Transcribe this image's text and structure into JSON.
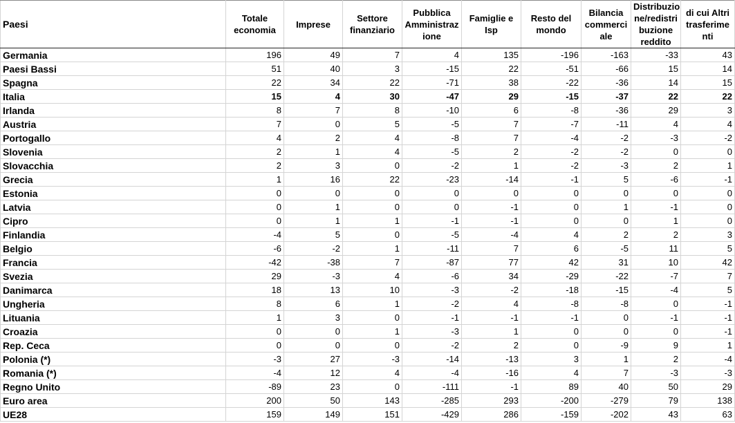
{
  "headers": [
    "Paesi",
    "Totale economia",
    "Imprese",
    "Settore finanziario",
    "Pubblica Amministrazione",
    "Famiglie e Isp",
    "Resto del mondo",
    "Bilancia commerciale",
    "Distribuzione/redistribuzione reddito",
    "di cui Altri trasferimenti"
  ],
  "headers_display": [
    "Paesi",
    "Totale economia",
    "Imprese",
    "Settore finanziario",
    "Pubblica Amministraz ione",
    "Famiglie e Isp",
    "Resto del mondo",
    "Bilancia commerci ale",
    "Distribuzio ne/redistri buzione reddito",
    "di cui Altri trasferime nti"
  ],
  "rows": [
    {
      "country": "Germania",
      "bold": false,
      "values": [
        "196",
        "49",
        "7",
        "4",
        "135",
        "-196",
        "-163",
        "-33",
        "43"
      ]
    },
    {
      "country": "Paesi Bassi",
      "bold": false,
      "values": [
        "51",
        "40",
        "3",
        "-15",
        "22",
        "-51",
        "-66",
        "15",
        "14"
      ]
    },
    {
      "country": "Spagna",
      "bold": false,
      "values": [
        "22",
        "34",
        "22",
        "-71",
        "38",
        "-22",
        "-36",
        "14",
        "15"
      ]
    },
    {
      "country": "Italia",
      "bold": true,
      "values": [
        "15",
        "4",
        "30",
        "-47",
        "29",
        "-15",
        "-37",
        "22",
        "22"
      ]
    },
    {
      "country": "Irlanda",
      "bold": false,
      "values": [
        "8",
        "7",
        "8",
        "-10",
        "6",
        "-8",
        "-36",
        "29",
        "3"
      ]
    },
    {
      "country": "Austria",
      "bold": false,
      "values": [
        "7",
        "0",
        "5",
        "-5",
        "7",
        "-7",
        "-11",
        "4",
        "4"
      ]
    },
    {
      "country": "Portogallo",
      "bold": false,
      "values": [
        "4",
        "2",
        "4",
        "-8",
        "7",
        "-4",
        "-2",
        "-3",
        "-2"
      ]
    },
    {
      "country": "Slovenia",
      "bold": false,
      "values": [
        "2",
        "1",
        "4",
        "-5",
        "2",
        "-2",
        "-2",
        "0",
        "0"
      ]
    },
    {
      "country": "Slovacchia",
      "bold": false,
      "values": [
        "2",
        "3",
        "0",
        "-2",
        "1",
        "-2",
        "-3",
        "2",
        "1"
      ]
    },
    {
      "country": "Grecia",
      "bold": false,
      "values": [
        "1",
        "16",
        "22",
        "-23",
        "-14",
        "-1",
        "5",
        "-6",
        "-1"
      ]
    },
    {
      "country": "Estonia",
      "bold": false,
      "values": [
        "0",
        "0",
        "0",
        "0",
        "0",
        "0",
        "0",
        "0",
        "0"
      ]
    },
    {
      "country": "Latvia",
      "bold": false,
      "values": [
        "0",
        "1",
        "0",
        "0",
        "-1",
        "0",
        "1",
        "-1",
        "0"
      ]
    },
    {
      "country": "Cipro",
      "bold": false,
      "values": [
        "0",
        "1",
        "1",
        "-1",
        "-1",
        "0",
        "0",
        "1",
        "0"
      ]
    },
    {
      "country": "Finlandia",
      "bold": false,
      "values": [
        "-4",
        "5",
        "0",
        "-5",
        "-4",
        "4",
        "2",
        "2",
        "3"
      ]
    },
    {
      "country": "Belgio",
      "bold": false,
      "values": [
        "-6",
        "-2",
        "1",
        "-11",
        "7",
        "6",
        "-5",
        "11",
        "5"
      ]
    },
    {
      "country": "Francia",
      "bold": false,
      "values": [
        "-42",
        "-38",
        "7",
        "-87",
        "77",
        "42",
        "31",
        "10",
        "42"
      ]
    },
    {
      "country": "Svezia",
      "bold": false,
      "values": [
        "29",
        "-3",
        "4",
        "-6",
        "34",
        "-29",
        "-22",
        "-7",
        "7"
      ]
    },
    {
      "country": "Danimarca",
      "bold": false,
      "values": [
        "18",
        "13",
        "10",
        "-3",
        "-2",
        "-18",
        "-15",
        "-4",
        "5"
      ]
    },
    {
      "country": "Ungheria",
      "bold": false,
      "values": [
        "8",
        "6",
        "1",
        "-2",
        "4",
        "-8",
        "-8",
        "0",
        "-1"
      ]
    },
    {
      "country": "Lituania",
      "bold": false,
      "values": [
        "1",
        "3",
        "0",
        "-1",
        "-1",
        "-1",
        "0",
        "-1",
        "-1"
      ]
    },
    {
      "country": "Croazia",
      "bold": false,
      "values": [
        "0",
        "0",
        "1",
        "-3",
        "1",
        "0",
        "0",
        "0",
        "-1"
      ]
    },
    {
      "country": "Rep. Ceca",
      "bold": false,
      "values": [
        "0",
        "0",
        "0",
        "-2",
        "2",
        "0",
        "-9",
        "9",
        "1"
      ]
    },
    {
      "country": "Polonia (*)",
      "bold": false,
      "values": [
        "-3",
        "27",
        "-3",
        "-14",
        "-13",
        "3",
        "1",
        "2",
        "-4"
      ]
    },
    {
      "country": "Romania (*)",
      "bold": false,
      "values": [
        "-4",
        "12",
        "4",
        "-4",
        "-16",
        "4",
        "7",
        "-3",
        "-3"
      ]
    },
    {
      "country": "Regno Unito",
      "bold": false,
      "values": [
        "-89",
        "23",
        "0",
        "-111",
        "-1",
        "89",
        "40",
        "50",
        "29"
      ]
    },
    {
      "country": "Euro area",
      "bold": false,
      "values": [
        "200",
        "50",
        "143",
        "-285",
        "293",
        "-200",
        "-279",
        "79",
        "138"
      ]
    },
    {
      "country": "UE28",
      "bold": false,
      "values": [
        "159",
        "149",
        "151",
        "-429",
        "286",
        "-159",
        "-202",
        "43",
        "63"
      ]
    }
  ]
}
